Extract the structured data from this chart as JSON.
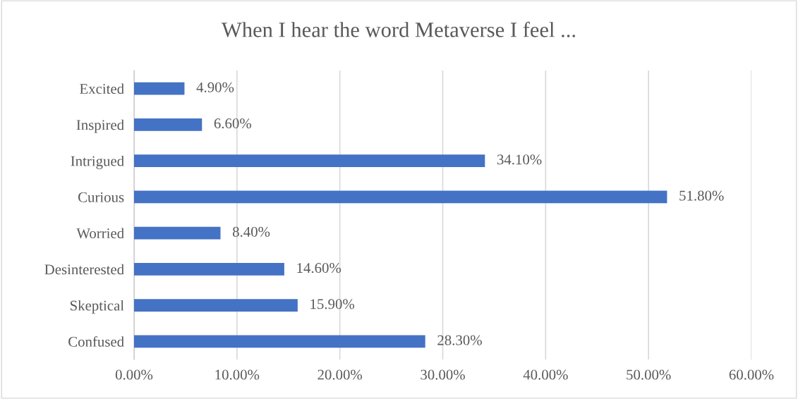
{
  "chart_data": {
    "type": "bar",
    "orientation": "horizontal",
    "title": "When I hear the word Metaverse I feel ...",
    "categories": [
      "Excited",
      "Inspired",
      "Intrigued",
      "Curious",
      "Worried",
      "Desinterested",
      "Skeptical",
      "Confused"
    ],
    "values": [
      4.9,
      6.6,
      34.1,
      51.8,
      8.4,
      14.6,
      15.9,
      28.3
    ],
    "value_labels": [
      "4.90%",
      "6.60%",
      "34.10%",
      "51.80%",
      "8.40%",
      "14.60%",
      "15.90%",
      "28.30%"
    ],
    "color": "#4472c4",
    "xlim": [
      0,
      60
    ],
    "xticks": [
      {
        "value": 0,
        "label": "0.00%"
      },
      {
        "value": 10,
        "label": "10.00%"
      },
      {
        "value": 20,
        "label": "20.00%"
      },
      {
        "value": 30,
        "label": "30.00%"
      },
      {
        "value": 40,
        "label": "40.00%"
      },
      {
        "value": 50,
        "label": "50.00%"
      },
      {
        "value": 60,
        "label": "60.00%"
      }
    ],
    "grid": "x",
    "legend": false
  }
}
